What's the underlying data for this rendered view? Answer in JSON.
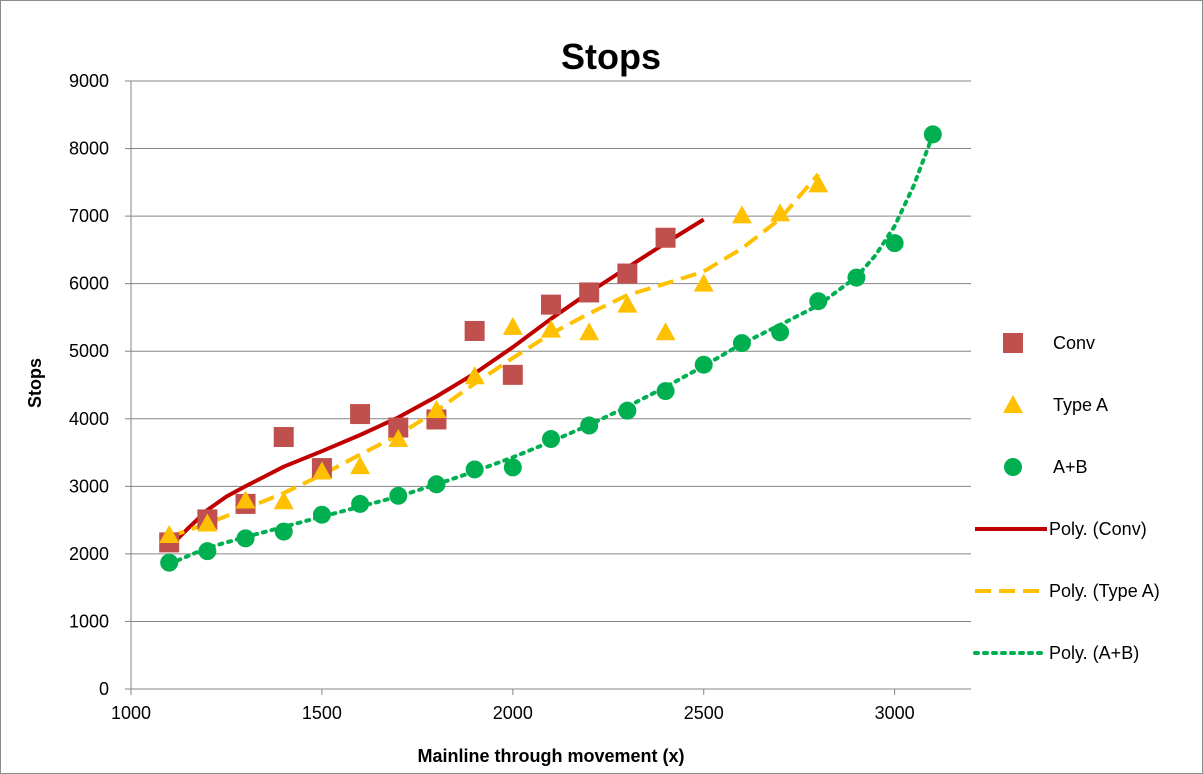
{
  "chart_data": {
    "type": "scatter",
    "title": "Stops",
    "xlabel": "Mainline through movement (x)",
    "ylabel": "Stops",
    "xlim": [
      1000,
      3200
    ],
    "ylim": [
      0,
      9000
    ],
    "x_ticks": [
      1000,
      1500,
      2000,
      2500,
      3000
    ],
    "y_ticks": [
      0,
      1000,
      2000,
      3000,
      4000,
      5000,
      6000,
      7000,
      8000,
      9000
    ],
    "grid": "horizontal",
    "legend_position": "right",
    "series": [
      {
        "name": "Conv",
        "marker": "square",
        "color": "#C0504D",
        "x": [
          1100,
          1200,
          1300,
          1400,
          1500,
          1600,
          1700,
          1800,
          1900,
          2000,
          2100,
          2200,
          2300,
          2400
        ],
        "y": [
          2170,
          2510,
          2740,
          3730,
          3270,
          4070,
          3870,
          3990,
          5300,
          4650,
          5690,
          5870,
          6150,
          6680
        ]
      },
      {
        "name": "Type A",
        "marker": "triangle",
        "color": "#FFC000",
        "x": [
          1100,
          1200,
          1300,
          1400,
          1500,
          1600,
          1700,
          1800,
          1900,
          2000,
          2100,
          2200,
          2300,
          2400,
          2500,
          2600,
          2700,
          2800
        ],
        "y": [
          2280,
          2450,
          2790,
          2780,
          3220,
          3300,
          3700,
          4130,
          4630,
          5360,
          5320,
          5280,
          5690,
          5280,
          6000,
          7010,
          7040,
          7470
        ]
      },
      {
        "name": "A+B",
        "marker": "circle",
        "color": "#00B050",
        "x": [
          1100,
          1200,
          1300,
          1400,
          1500,
          1600,
          1700,
          1800,
          1900,
          2000,
          2100,
          2200,
          2300,
          2400,
          2500,
          2600,
          2700,
          2800,
          2900,
          3000,
          3100
        ],
        "y": [
          1870,
          2040,
          2230,
          2330,
          2580,
          2740,
          2860,
          3030,
          3250,
          3280,
          3700,
          3900,
          4120,
          4410,
          4800,
          5120,
          5280,
          5740,
          6090,
          6600,
          8210
        ]
      }
    ],
    "trendlines": [
      {
        "name": "Poly. (Conv)",
        "style": "solid",
        "color": "#C00000",
        "x": [
          1100,
          1150,
          1200,
          1250,
          1300,
          1400,
          1500,
          1600,
          1700,
          1800,
          1900,
          2000,
          2100,
          2200,
          2300,
          2400,
          2500
        ],
        "y": [
          2100,
          2380,
          2650,
          2850,
          3000,
          3290,
          3520,
          3760,
          4020,
          4330,
          4670,
          5060,
          5480,
          5870,
          6240,
          6600,
          6950
        ]
      },
      {
        "name": "Poly. (Type A)",
        "style": "dashed",
        "color": "#FFC000",
        "x": [
          1100,
          1200,
          1300,
          1400,
          1500,
          1600,
          1700,
          1800,
          1900,
          2000,
          2100,
          2200,
          2300,
          2400,
          2500,
          2600,
          2700,
          2800
        ],
        "y": [
          2250,
          2450,
          2670,
          2900,
          3170,
          3470,
          3760,
          4120,
          4520,
          4900,
          5260,
          5560,
          5830,
          6000,
          6180,
          6520,
          6960,
          7620
        ]
      },
      {
        "name": "Poly. (A+B)",
        "style": "dotted",
        "color": "#00B050",
        "x": [
          1100,
          1200,
          1300,
          1400,
          1500,
          1600,
          1700,
          1800,
          1900,
          2000,
          2100,
          2200,
          2300,
          2400,
          2500,
          2600,
          2700,
          2800,
          2900,
          2950,
          3000,
          3050,
          3100
        ],
        "y": [
          1850,
          2090,
          2250,
          2400,
          2550,
          2700,
          2850,
          3030,
          3220,
          3430,
          3660,
          3910,
          4180,
          4470,
          4780,
          5110,
          5390,
          5680,
          6100,
          6420,
          6850,
          7450,
          8200
        ]
      }
    ]
  }
}
